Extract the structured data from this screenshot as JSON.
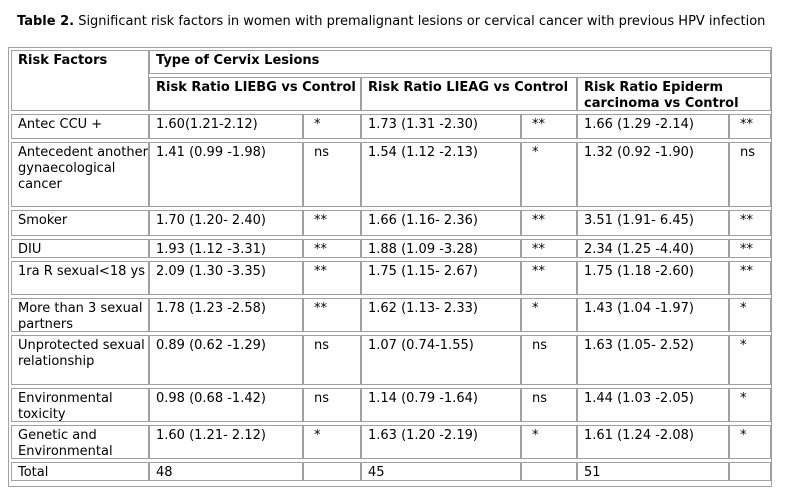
{
  "caption": {
    "label": "Table 2.",
    "text": " Significant risk factors in women with premalignant lesions or cervical cancer with previous HPV infection"
  },
  "table": {
    "header": {
      "risk_factors": "Risk Factors",
      "type": "Type of  Cervix Lesions",
      "groups": [
        "Risk Ratio LIEBG vs Control",
        "Risk Ratio LIEAG vs Control",
        "Risk Ratio Epiderm carcinoma vs Control"
      ]
    },
    "rows": [
      {
        "factor": "Antec CCU +",
        "liebg": "1.60(1.21-2.12)",
        "liebg_sig": "*",
        "lieag": "1.73 (1.31 -2.30)",
        "lieag_sig": "**",
        "carc": "1.66 (1.29 -2.14)",
        "carc_sig": "**"
      },
      {
        "factor": "Antecedent another gynaecological cancer",
        "liebg": "1.41 (0.99 -1.98)",
        "liebg_sig": "ns",
        "lieag": "1.54 (1.12 -2.13)",
        "lieag_sig": "*",
        "carc": "1.32 (0.92 -1.90)",
        "carc_sig": "ns"
      },
      {
        "factor": "Smoker",
        "liebg": "1.70 (1.20- 2.40)",
        "liebg_sig": "**",
        "lieag": "1.66 (1.16- 2.36)",
        "lieag_sig": "**",
        "carc": "3.51 (1.91- 6.45)",
        "carc_sig": "**"
      },
      {
        "factor": "DIU",
        "liebg": "1.93 (1.12 -3.31)",
        "liebg_sig": "**",
        "lieag": "1.88 (1.09 -3.28)",
        "lieag_sig": "**",
        "carc": "2.34 (1.25 -4.40)",
        "carc_sig": "**"
      },
      {
        "factor": "1ra R sexual<18 ys",
        "liebg": "2.09 (1.30 -3.35)",
        "liebg_sig": "**",
        "lieag": "1.75 (1.15- 2.67)",
        "lieag_sig": "**",
        "carc": "1.75 (1.18 -2.60)",
        "carc_sig": "**"
      },
      {
        "factor": "More than 3 sexual partners",
        "liebg": "1.78 (1.23 -2.58)",
        "liebg_sig": "**",
        "lieag": "1.62 (1.13- 2.33)",
        "lieag_sig": "*",
        "carc": "1.43 (1.04 -1.97)",
        "carc_sig": "*"
      },
      {
        "factor": "Unprotected sexual relationship",
        "liebg": "0.89 (0.62 -1.29)",
        "liebg_sig": "ns",
        "lieag": "1.07 (0.74-1.55)",
        "lieag_sig": "ns",
        "carc": "1.63 (1.05- 2.52)",
        "carc_sig": "*"
      },
      {
        "factor": "Environmental toxicity",
        "liebg": "0.98 (0.68 -1.42)",
        "liebg_sig": "ns",
        "lieag": "1.14 (0.79 -1.64)",
        "lieag_sig": "ns",
        "carc": "1.44 (1.03 -2.05)",
        "carc_sig": "*"
      },
      {
        "factor": "Genetic and Environmental",
        "liebg": "1.60 (1.21- 2.12)",
        "liebg_sig": "*",
        "lieag": "1.63 (1.20 -2.19)",
        "lieag_sig": "*",
        "carc": "1.61 (1.24 -2.08)",
        "carc_sig": "*"
      },
      {
        "factor": "Total",
        "liebg": "48",
        "liebg_sig": "",
        "lieag": "45",
        "lieag_sig": "",
        "carc": "51",
        "carc_sig": ""
      }
    ]
  }
}
